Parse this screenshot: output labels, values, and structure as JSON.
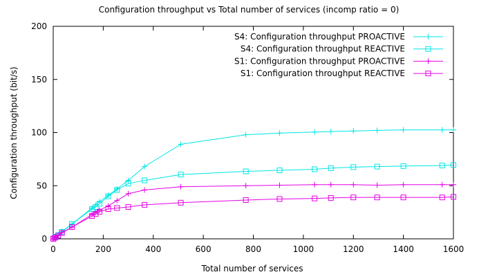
{
  "chart_data": {
    "type": "line",
    "title": "Configuration throughput vs Total number of services (incomp ratio = 0)",
    "xlabel": "Total number of services",
    "ylabel": "Configuration throughput (bit/s)",
    "xlim": [
      0,
      1600
    ],
    "ylim": [
      0,
      200
    ],
    "xticks": [
      0,
      200,
      400,
      600,
      800,
      1000,
      1200,
      1400,
      1600
    ],
    "yticks": [
      0,
      50,
      100,
      150,
      200
    ],
    "grid": false,
    "legend_position": "top-right",
    "series": [
      {
        "name": "S4: Configuration throughput PROACTIVE",
        "color": "#00e5e5",
        "marker": "plus",
        "x": [
          0,
          5,
          10,
          20,
          35,
          75,
          155,
          170,
          185,
          220,
          255,
          300,
          365,
          510,
          770,
          905,
          1045,
          1110,
          1200,
          1295,
          1400,
          1555,
          1600
        ],
        "y": [
          0,
          1,
          2,
          4,
          7,
          14,
          29,
          32,
          35,
          41,
          47,
          55,
          68,
          89,
          98,
          99.5,
          100.5,
          101,
          101.5,
          102,
          102.5,
          102.5,
          102.5
        ]
      },
      {
        "name": "S4: Configuration throughput REACTIVE",
        "color": "#00e5e5",
        "marker": "square",
        "x": [
          0,
          5,
          10,
          20,
          35,
          75,
          155,
          170,
          185,
          220,
          255,
          300,
          365,
          510,
          770,
          905,
          1045,
          1110,
          1200,
          1295,
          1400,
          1555,
          1600
        ],
        "y": [
          0,
          1,
          2,
          3.5,
          6.5,
          14,
          28,
          30,
          33,
          40,
          46,
          52,
          55,
          60.5,
          63.5,
          64.5,
          65.5,
          66.5,
          67.5,
          68,
          68.5,
          69,
          69.5
        ]
      },
      {
        "name": "S1: Configuration throughput PROACTIVE",
        "color": "#e500e5",
        "marker": "plus",
        "x": [
          0,
          5,
          10,
          20,
          35,
          75,
          155,
          170,
          185,
          220,
          255,
          300,
          365,
          510,
          770,
          905,
          1045,
          1110,
          1200,
          1295,
          1400,
          1555,
          1600
        ],
        "y": [
          0,
          1,
          1.5,
          3,
          6,
          11,
          23,
          25,
          27,
          31,
          36,
          42.5,
          46,
          49,
          50,
          50.5,
          51,
          51,
          51,
          50.5,
          51,
          51,
          51
        ]
      },
      {
        "name": "S1: Configuration throughput REACTIVE",
        "color": "#e500e5",
        "marker": "square",
        "x": [
          0,
          5,
          10,
          20,
          35,
          75,
          155,
          170,
          185,
          220,
          255,
          300,
          365,
          510,
          770,
          905,
          1045,
          1110,
          1200,
          1295,
          1400,
          1555,
          1600
        ],
        "y": [
          0,
          1,
          1.5,
          3,
          5.5,
          11,
          21.5,
          23.5,
          25.5,
          28,
          29,
          30,
          32,
          34,
          36.5,
          37.5,
          38,
          38.5,
          39,
          39,
          39,
          39,
          39.5
        ]
      }
    ]
  }
}
